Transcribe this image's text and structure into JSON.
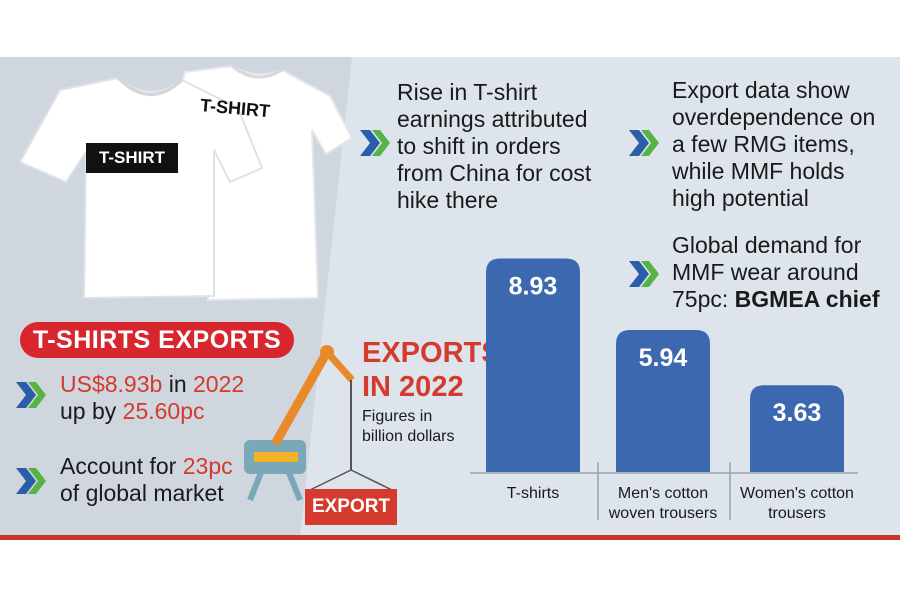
{
  "tshirt_labels": {
    "front": "T-SHIRT",
    "back": "T-SHIRT"
  },
  "banner": "T-SHIRTS EXPORTS",
  "facts": [
    {
      "parts": [
        "US$8.93b",
        " in ",
        "2022"
      ],
      "line2": [
        "up by ",
        "25.60pc"
      ]
    },
    {
      "parts": [
        "Account for ",
        "23pc"
      ],
      "line2": [
        "of global market"
      ]
    }
  ],
  "notes": [
    {
      "lines": [
        "Rise in T-shirt",
        "earnings attributed",
        "to shift in orders",
        "from China for cost",
        "hike there"
      ]
    },
    {
      "lines": [
        "Export data show",
        "overdependence on",
        "a few RMG items,",
        "while MMF holds",
        "high potential"
      ]
    },
    {
      "lines": [
        "Global demand for",
        "MMF wear around",
        "75pc: "
      ],
      "bold_tail": "BGMEA chief"
    }
  ],
  "export_sign": "EXPORT",
  "chart_data": {
    "type": "bar",
    "title": "EXPORTS IN 2022",
    "title_lines": [
      "EXPORTS",
      "IN 2022"
    ],
    "subtitle_lines": [
      "Figures in",
      "billion dollars"
    ],
    "categories": [
      "T-shirts",
      "Men's cotton woven trousers",
      "Women's cotton trousers"
    ],
    "category_lines": [
      [
        "T-shirts"
      ],
      [
        "Men's cotton",
        "woven trousers"
      ],
      [
        "Women's cotton",
        "trousers"
      ]
    ],
    "values": [
      8.93,
      5.94,
      3.63
    ],
    "value_labels": [
      "8.93",
      "5.94",
      "3.63"
    ],
    "unit": "billion dollars",
    "ylim": [
      0,
      9.2
    ],
    "bar_color": "#3c68b0",
    "grid": false,
    "legend": "none"
  }
}
